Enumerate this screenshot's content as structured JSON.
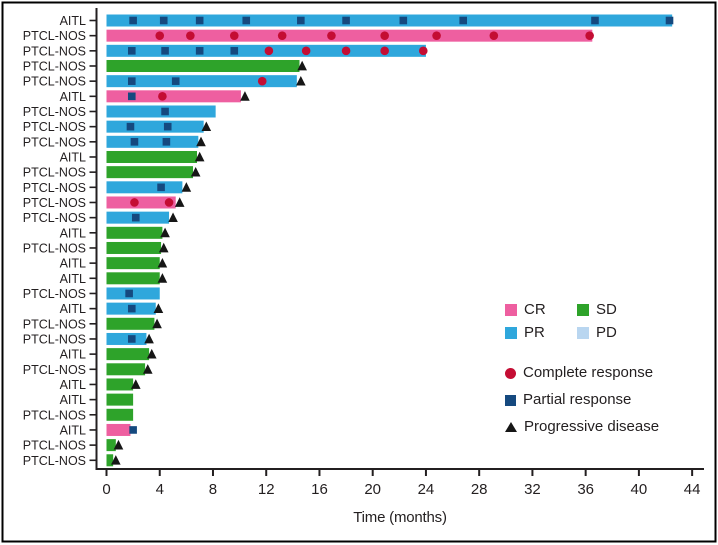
{
  "chart_data": {
    "type": "bar",
    "variant": "swimmer-plot",
    "orientation": "horizontal",
    "title": "",
    "xlabel": "Time (months)",
    "ylabel": "",
    "xlim": [
      0,
      44
    ],
    "x_ticks": [
      0,
      4,
      8,
      12,
      16,
      20,
      24,
      28,
      32,
      36,
      40,
      44
    ],
    "grid": false,
    "legend_position": "center-right",
    "colors": {
      "CR": "#ee5fa0",
      "PR": "#2fa7dc",
      "SD": "#2ea32a",
      "PD": "#b9d6f0",
      "complete_response_marker": "#c40d33",
      "partial_response_marker": "#15497f",
      "progressive_disease_marker": "#161616",
      "axis": "#231f20",
      "text": "#231f20",
      "frame": "#000000"
    },
    "legend_swatches": [
      {
        "label": "CR",
        "color": "#ee5fa0"
      },
      {
        "label": "SD",
        "color": "#2ea32a"
      },
      {
        "label": "PR",
        "color": "#2fa7dc"
      },
      {
        "label": "PD",
        "color": "#b9d6f0"
      }
    ],
    "legend_markers": [
      {
        "label": "Complete response",
        "shape": "circle",
        "color": "#c40d33"
      },
      {
        "label": "Partial response",
        "shape": "square",
        "color": "#15497f"
      },
      {
        "label": "Progressive disease",
        "shape": "triangle",
        "color": "#161616"
      }
    ],
    "patients": [
      {
        "label": "AITL",
        "response": "PR",
        "months": 42.5,
        "partial_response_at": [
          2,
          4.3,
          7,
          10.5,
          14.6,
          18,
          22.3,
          26.8,
          36.7,
          42.3
        ],
        "complete_response_at": [],
        "progressive_disease_at": null
      },
      {
        "label": "PTCL-NOS",
        "response": "CR",
        "months": 36.5,
        "partial_response_at": [],
        "complete_response_at": [
          4,
          6.3,
          9.6,
          13.2,
          16.9,
          20.9,
          24.8,
          29.1,
          36.3
        ],
        "progressive_disease_at": null
      },
      {
        "label": "PTCL-NOS",
        "response": "PR",
        "months": 24.0,
        "partial_response_at": [
          1.9,
          4.4,
          7,
          9.6
        ],
        "complete_response_at": [
          12.2,
          15,
          18,
          20.9,
          23.8
        ],
        "progressive_disease_at": null
      },
      {
        "label": "PTCL-NOS",
        "response": "SD",
        "months": 14.5,
        "partial_response_at": [],
        "complete_response_at": [],
        "progressive_disease_at": 14.7
      },
      {
        "label": "PTCL-NOS",
        "response": "PR",
        "months": 14.3,
        "partial_response_at": [
          1.9,
          5.2
        ],
        "complete_response_at": [
          11.7
        ],
        "progressive_disease_at": 14.6
      },
      {
        "label": "AITL",
        "response": "CR",
        "months": 10.1,
        "partial_response_at": [
          1.9
        ],
        "complete_response_at": [
          4.2
        ],
        "progressive_disease_at": 10.4
      },
      {
        "label": "PTCL-NOS",
        "response": "PR",
        "months": 8.2,
        "partial_response_at": [
          4.4
        ],
        "complete_response_at": [],
        "progressive_disease_at": null
      },
      {
        "label": "PTCL-NOS",
        "response": "PR",
        "months": 7.3,
        "partial_response_at": [
          1.8,
          4.6
        ],
        "complete_response_at": [],
        "progressive_disease_at": 7.5
      },
      {
        "label": "PTCL-NOS",
        "response": "PR",
        "months": 6.9,
        "partial_response_at": [
          2.1,
          4.5
        ],
        "complete_response_at": [],
        "progressive_disease_at": 7.1
      },
      {
        "label": "AITL",
        "response": "SD",
        "months": 6.8,
        "partial_response_at": [],
        "complete_response_at": [],
        "progressive_disease_at": 7.0
      },
      {
        "label": "PTCL-NOS",
        "response": "SD",
        "months": 6.5,
        "partial_response_at": [],
        "complete_response_at": [],
        "progressive_disease_at": 6.7
      },
      {
        "label": "PTCL-NOS",
        "response": "PR",
        "months": 5.7,
        "partial_response_at": [
          4.1
        ],
        "complete_response_at": [],
        "progressive_disease_at": 6.0
      },
      {
        "label": "PTCL-NOS",
        "response": "CR",
        "months": 5.2,
        "partial_response_at": [],
        "complete_response_at": [
          2.1,
          4.7
        ],
        "progressive_disease_at": 5.5
      },
      {
        "label": "PTCL-NOS",
        "response": "PR",
        "months": 4.7,
        "partial_response_at": [
          2.2
        ],
        "complete_response_at": [],
        "progressive_disease_at": 5.0
      },
      {
        "label": "AITL",
        "response": "SD",
        "months": 4.2,
        "partial_response_at": [],
        "complete_response_at": [],
        "progressive_disease_at": 4.4
      },
      {
        "label": "PTCL-NOS",
        "response": "SD",
        "months": 4.1,
        "partial_response_at": [],
        "complete_response_at": [],
        "progressive_disease_at": 4.3
      },
      {
        "label": "AITL",
        "response": "SD",
        "months": 4.0,
        "partial_response_at": [],
        "complete_response_at": [],
        "progressive_disease_at": 4.2
      },
      {
        "label": "AITL",
        "response": "SD",
        "months": 4.0,
        "partial_response_at": [],
        "complete_response_at": [],
        "progressive_disease_at": 4.2
      },
      {
        "label": "PTCL-NOS",
        "response": "PR",
        "months": 4.0,
        "partial_response_at": [
          1.7
        ],
        "complete_response_at": [],
        "progressive_disease_at": null
      },
      {
        "label": "AITL",
        "response": "PR",
        "months": 3.7,
        "partial_response_at": [
          1.9
        ],
        "complete_response_at": [],
        "progressive_disease_at": 3.9
      },
      {
        "label": "PTCL-NOS",
        "response": "SD",
        "months": 3.6,
        "partial_response_at": [],
        "complete_response_at": [],
        "progressive_disease_at": 3.8
      },
      {
        "label": "PTCL-NOS",
        "response": "PR",
        "months": 3.0,
        "partial_response_at": [
          1.9
        ],
        "complete_response_at": [],
        "progressive_disease_at": 3.2
      },
      {
        "label": "AITL",
        "response": "SD",
        "months": 3.2,
        "partial_response_at": [],
        "complete_response_at": [],
        "progressive_disease_at": 3.4
      },
      {
        "label": "PTCL-NOS",
        "response": "SD",
        "months": 2.9,
        "partial_response_at": [],
        "complete_response_at": [],
        "progressive_disease_at": 3.1
      },
      {
        "label": "AITL",
        "response": "SD",
        "months": 2.0,
        "partial_response_at": [],
        "complete_response_at": [],
        "progressive_disease_at": 2.2
      },
      {
        "label": "AITL",
        "response": "SD",
        "months": 2.0,
        "partial_response_at": [],
        "complete_response_at": [],
        "progressive_disease_at": null
      },
      {
        "label": "PTCL-NOS",
        "response": "SD",
        "months": 2.0,
        "partial_response_at": [],
        "complete_response_at": [],
        "progressive_disease_at": null
      },
      {
        "label": "AITL",
        "response": "CR",
        "months": 1.8,
        "partial_response_at": [
          2.0
        ],
        "complete_response_at": [],
        "progressive_disease_at": null
      },
      {
        "label": "PTCL-NOS",
        "response": "SD",
        "months": 0.7,
        "partial_response_at": [],
        "complete_response_at": [],
        "progressive_disease_at": 0.9
      },
      {
        "label": "PTCL-NOS",
        "response": "SD",
        "months": 0.5,
        "partial_response_at": [],
        "complete_response_at": [],
        "progressive_disease_at": 0.7
      }
    ]
  }
}
